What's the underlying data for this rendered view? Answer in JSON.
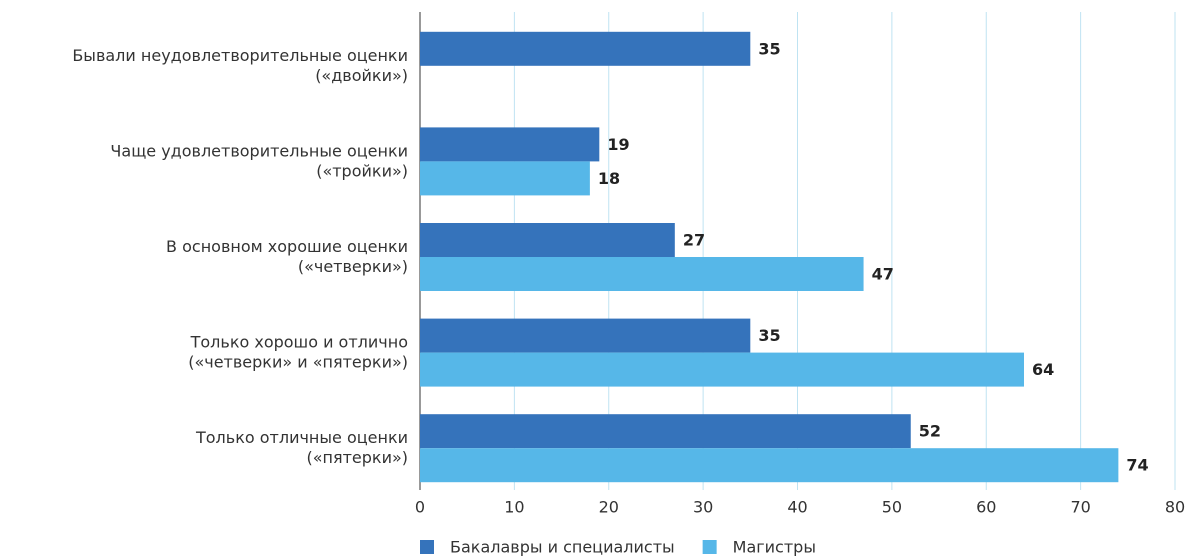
{
  "chart_data": {
    "type": "bar",
    "orientation": "horizontal",
    "categories": [
      [
        "Бывали неудовлетворительные оценки",
        "(«двойки»)"
      ],
      [
        "Чаще удовлетворительные оценки",
        "(«тройки»)"
      ],
      [
        "В основном хорошие оценки",
        "(«четверки»)"
      ],
      [
        "Только хорошо и отлично",
        "(«четверки» и «пятерки»)"
      ],
      [
        "Только отличные оценки",
        "(«пятерки»)"
      ]
    ],
    "series": [
      {
        "name": "Бакалавры и специалисты",
        "color": "#3573bb",
        "values": [
          35,
          19,
          27,
          35,
          52
        ]
      },
      {
        "name": "Магистры",
        "color": "#56b7e8",
        "values": [
          null,
          18,
          47,
          64,
          74
        ]
      }
    ],
    "xlim": [
      0,
      80
    ],
    "xticks": [
      0,
      10,
      20,
      30,
      40,
      50,
      60,
      70,
      80
    ],
    "grid": true,
    "legend": "bottom"
  }
}
